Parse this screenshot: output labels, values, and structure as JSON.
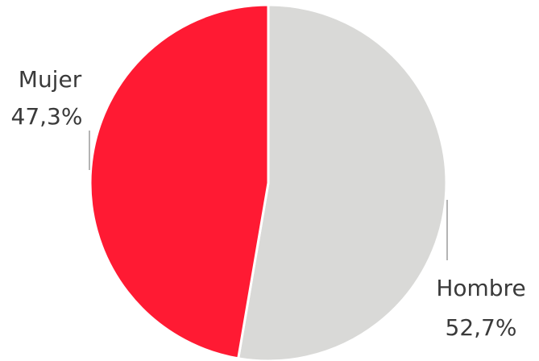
{
  "chart_data": {
    "type": "pie",
    "slices": [
      {
        "name": "Hombre",
        "value": 52.7,
        "label": "52,7%",
        "color": "#d9d9d7"
      },
      {
        "name": "Mujer",
        "value": 47.3,
        "label": "47,3%",
        "color": "#ff1a33"
      }
    ],
    "start": "12 o'clock",
    "direction": "clockwise",
    "legend": "none",
    "labels": "outside with leader lines"
  }
}
